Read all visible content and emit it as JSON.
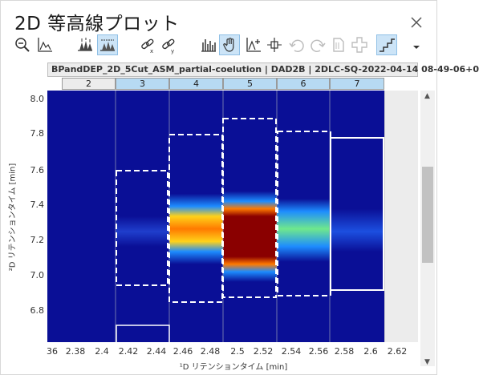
{
  "window": {
    "title": "2D 等高線プロット",
    "close_icon": "close-icon"
  },
  "toolbar": {
    "icons": [
      "zoom-out-icon",
      "peak-area-icon",
      "peaks-icon",
      "peaks-filled-icon",
      "link-x-icon",
      "link-y-icon",
      "bars-icon",
      "hand-icon",
      "add-peak-icon",
      "baseline-icon",
      "undo-icon",
      "redo-icon",
      "document-icon",
      "plus-box-icon",
      "staircase-icon",
      "overflow-chevron-icon"
    ]
  },
  "header": {
    "text": "BPandDEP_2D_5Cut_ASM_partial-coelution | DAD2B | 2DLC-SQ-2022-04-14 08-49-06+0"
  },
  "cuts": [
    {
      "label": "2",
      "selected": false
    },
    {
      "label": "3",
      "selected": true
    },
    {
      "label": "4",
      "selected": true
    },
    {
      "label": "5",
      "selected": true
    },
    {
      "label": "6",
      "selected": true
    },
    {
      "label": "7",
      "selected": true
    }
  ],
  "axes": {
    "ylabel": "²D リテンションタイム [min]",
    "xlabel": "¹D リテンションタイム [min]",
    "yticks": [
      "8.0",
      "7.8",
      "7.6",
      "7.4",
      "7.2",
      "7.0",
      "6.8"
    ],
    "xticks": [
      "36",
      "2.38",
      "2.4",
      "2.42",
      "2.44",
      "2.46",
      "2.48",
      "2.5",
      "2.52",
      "2.54",
      "2.56",
      "2.58",
      "2.6",
      "2.62"
    ]
  },
  "colors": {
    "background": "#0a0f96",
    "selected_cut": "#b7daf3",
    "frame_white": "#ffffff"
  }
}
